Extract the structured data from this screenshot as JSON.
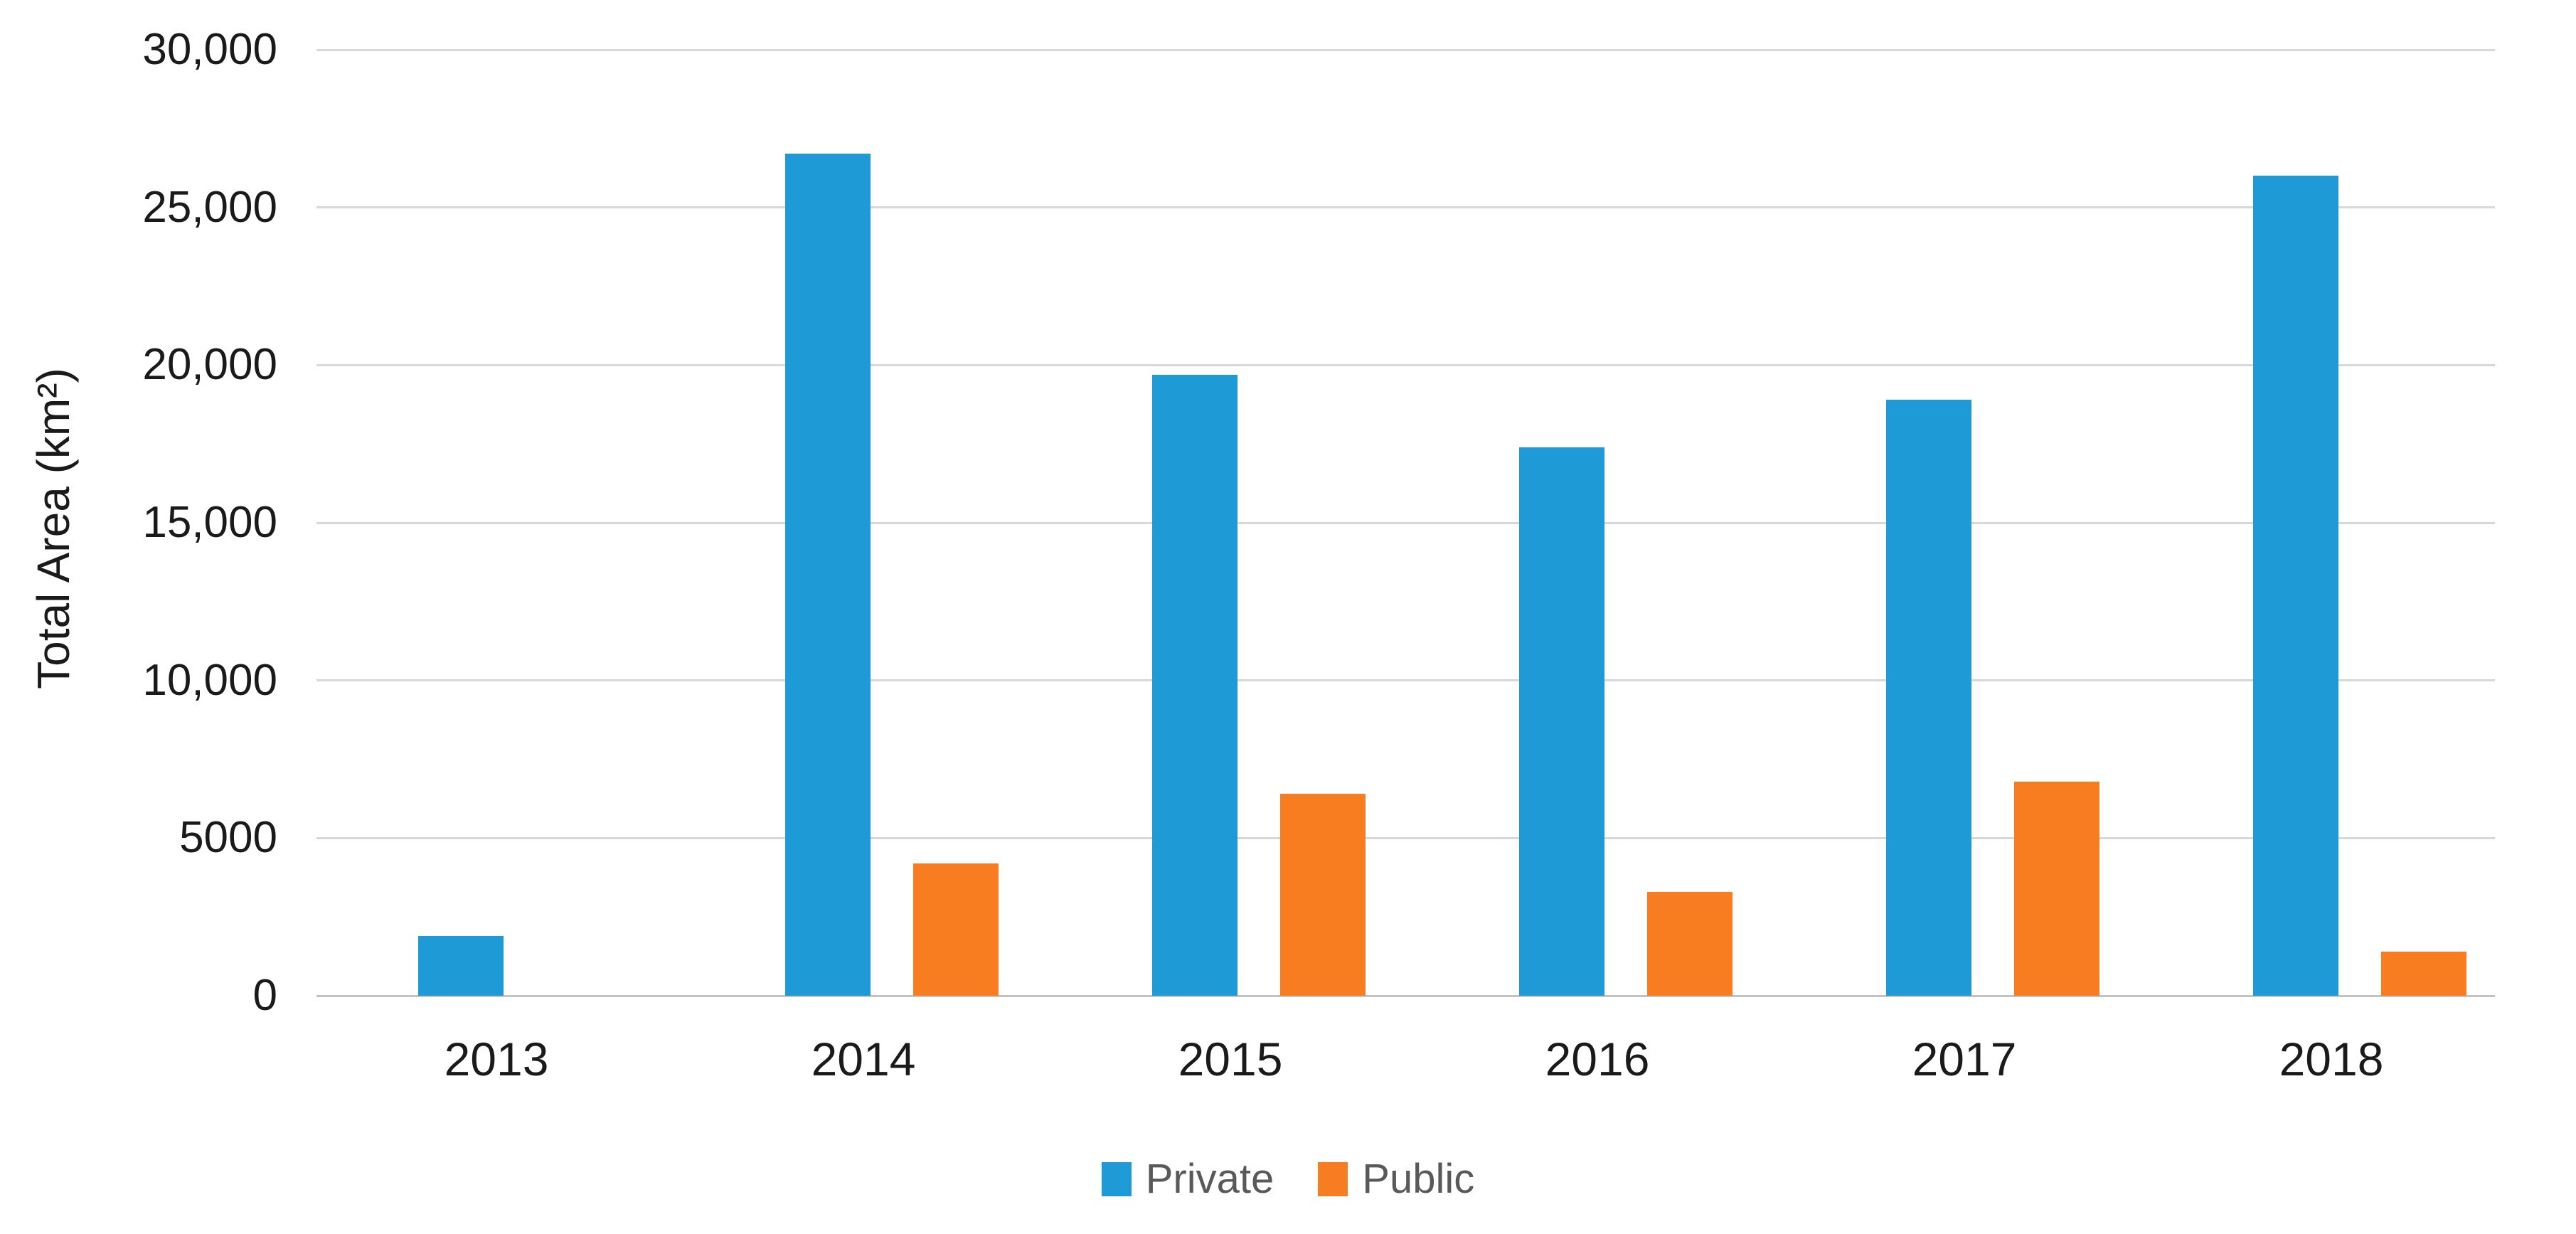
{
  "chart_data": {
    "type": "bar",
    "title": "",
    "categories": [
      "2013",
      "2014",
      "2015",
      "2016",
      "2017",
      "2018"
    ],
    "series": [
      {
        "name": "Private",
        "color": "#1e9bd7",
        "values": [
          1900,
          26700,
          19700,
          17400,
          18900,
          26000
        ]
      },
      {
        "name": "Public",
        "color": "#f87d20",
        "values": [
          0,
          4200,
          6400,
          3300,
          6800,
          1400
        ]
      }
    ],
    "xlabel": "",
    "ylabel": "Total Area (km²)",
    "ylim": [
      0,
      30000
    ],
    "ytick_values": [
      0,
      5000,
      10000,
      15000,
      20000,
      25000,
      30000
    ],
    "ytick_labels": [
      "0",
      "5000",
      "10,000",
      "15,000",
      "20,000",
      "25,000",
      "30,000"
    ],
    "grid": "horizontal-only",
    "gridline_color": "#d8d8d8",
    "baseline_color": "#c3c3c3",
    "legend_position": "bottom-center",
    "background_color": "#ffffff",
    "axis_text_color": "#1a1a1a",
    "legend_text_color": "#595959"
  }
}
